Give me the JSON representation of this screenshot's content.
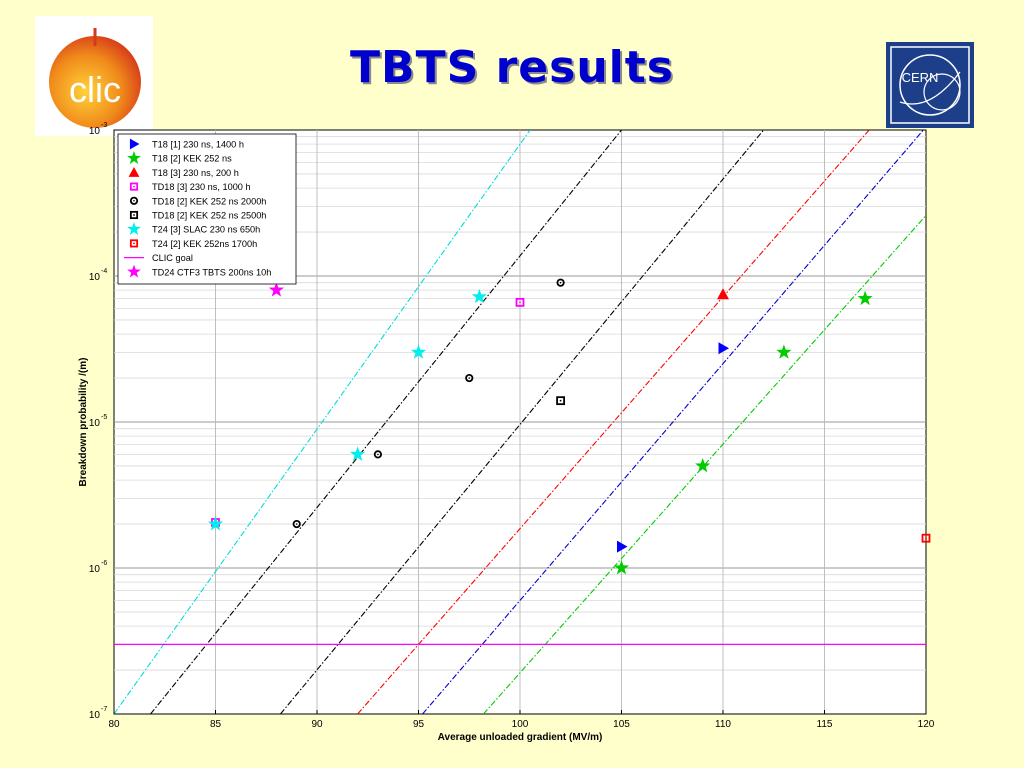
{
  "slide": {
    "title": "TBTS results",
    "logo_left_text": "clic",
    "logo_right_text": "CERN"
  },
  "chart_data": {
    "type": "scatter",
    "xlabel": "Average unloaded gradient (MV/m)",
    "ylabel": "Breakdown probability /(m)",
    "xlim": [
      80,
      120
    ],
    "ylim": [
      1e-07,
      0.001
    ],
    "yscale": "log",
    "grid": true,
    "legend_position": "top-left",
    "x_ticks": [
      "80",
      "85",
      "90",
      "95",
      "100",
      "105",
      "110",
      "115",
      "120"
    ],
    "y_ticks": [
      {
        "base": "10",
        "exp": "-7"
      },
      {
        "base": "10",
        "exp": "-6"
      },
      {
        "base": "10",
        "exp": "-5"
      },
      {
        "base": "10",
        "exp": "-4"
      },
      {
        "base": "10",
        "exp": "-3"
      }
    ],
    "series": [
      {
        "name": "T18 [1] 230 ns, 1400 h",
        "marker": "triangle-right",
        "color": "#0000ff",
        "points": [
          [
            105,
            1.4e-06
          ],
          [
            110,
            3.2e-05
          ]
        ]
      },
      {
        "name": "T18 [2] KEK 252 ns",
        "marker": "star",
        "color": "#00cc00",
        "points": [
          [
            105,
            1e-06
          ],
          [
            109,
            5e-06
          ],
          [
            113,
            3e-05
          ],
          [
            117,
            7e-05
          ]
        ]
      },
      {
        "name": "T18 [3] 230 ns, 200 h",
        "marker": "triangle-up",
        "color": "#ff0000",
        "points": [
          [
            110,
            7.5e-05
          ]
        ]
      },
      {
        "name": "TD18 [3] 230 ns, 1000 h",
        "marker": "square-dot",
        "color": "#ff00ff",
        "points": [
          [
            85,
            2.05e-06
          ],
          [
            100,
            6.6e-05
          ]
        ]
      },
      {
        "name": "TD18 [2] KEK 252 ns 2000h",
        "marker": "circle-dot",
        "color": "#000000",
        "points": [
          [
            89,
            2e-06
          ],
          [
            93,
            6e-06
          ],
          [
            97.5,
            2e-05
          ],
          [
            102,
            9e-05
          ]
        ]
      },
      {
        "name": "TD18 [2] KEK 252 ns 2500h",
        "marker": "square-dot",
        "color": "#000000",
        "points": [
          [
            102,
            1.4e-05
          ]
        ]
      },
      {
        "name": "T24 [3] SLAC 230 ns 650h",
        "marker": "star",
        "color": "#00eeee",
        "points": [
          [
            85,
            2e-06
          ],
          [
            92,
            6e-06
          ],
          [
            95,
            3e-05
          ],
          [
            98,
            7.2e-05
          ]
        ]
      },
      {
        "name": "T24 [2] KEK 252ns 1700h",
        "marker": "square-dot",
        "color": "#ff0000",
        "points": [
          [
            120,
            1.6e-06
          ]
        ]
      },
      {
        "name": "CLIC goal",
        "marker": "line",
        "color": "#ff00ff",
        "points": []
      },
      {
        "name": "TD24 CTF3 TBTS 200ns 10h",
        "marker": "star",
        "color": "#ff00ff",
        "points": [
          [
            88,
            8e-05
          ]
        ]
      }
    ],
    "clic_goal": {
      "y": 3e-07,
      "color": "#ff00ff"
    },
    "fit_lines": [
      {
        "color": "#00dddd",
        "x1": 80,
        "y1": 1e-07,
        "x2": 100.5,
        "y2": 0.001
      },
      {
        "color": "#000000",
        "x1": 81.8,
        "y1": 1e-07,
        "x2": 105,
        "y2": 0.001
      },
      {
        "color": "#000000",
        "x1": 88.2,
        "y1": 1e-07,
        "x2": 112,
        "y2": 0.001
      },
      {
        "color": "#ff0000",
        "x1": 92,
        "y1": 1e-07,
        "x2": 117.2,
        "y2": 0.001
      },
      {
        "color": "#0000cc",
        "x1": 95.2,
        "y1": 1e-07,
        "x2": 120,
        "y2": 0.00105
      },
      {
        "color": "#00cc00",
        "x1": 98.2,
        "y1": 1e-07,
        "x2": 120,
        "y2": 0.00026
      }
    ]
  }
}
